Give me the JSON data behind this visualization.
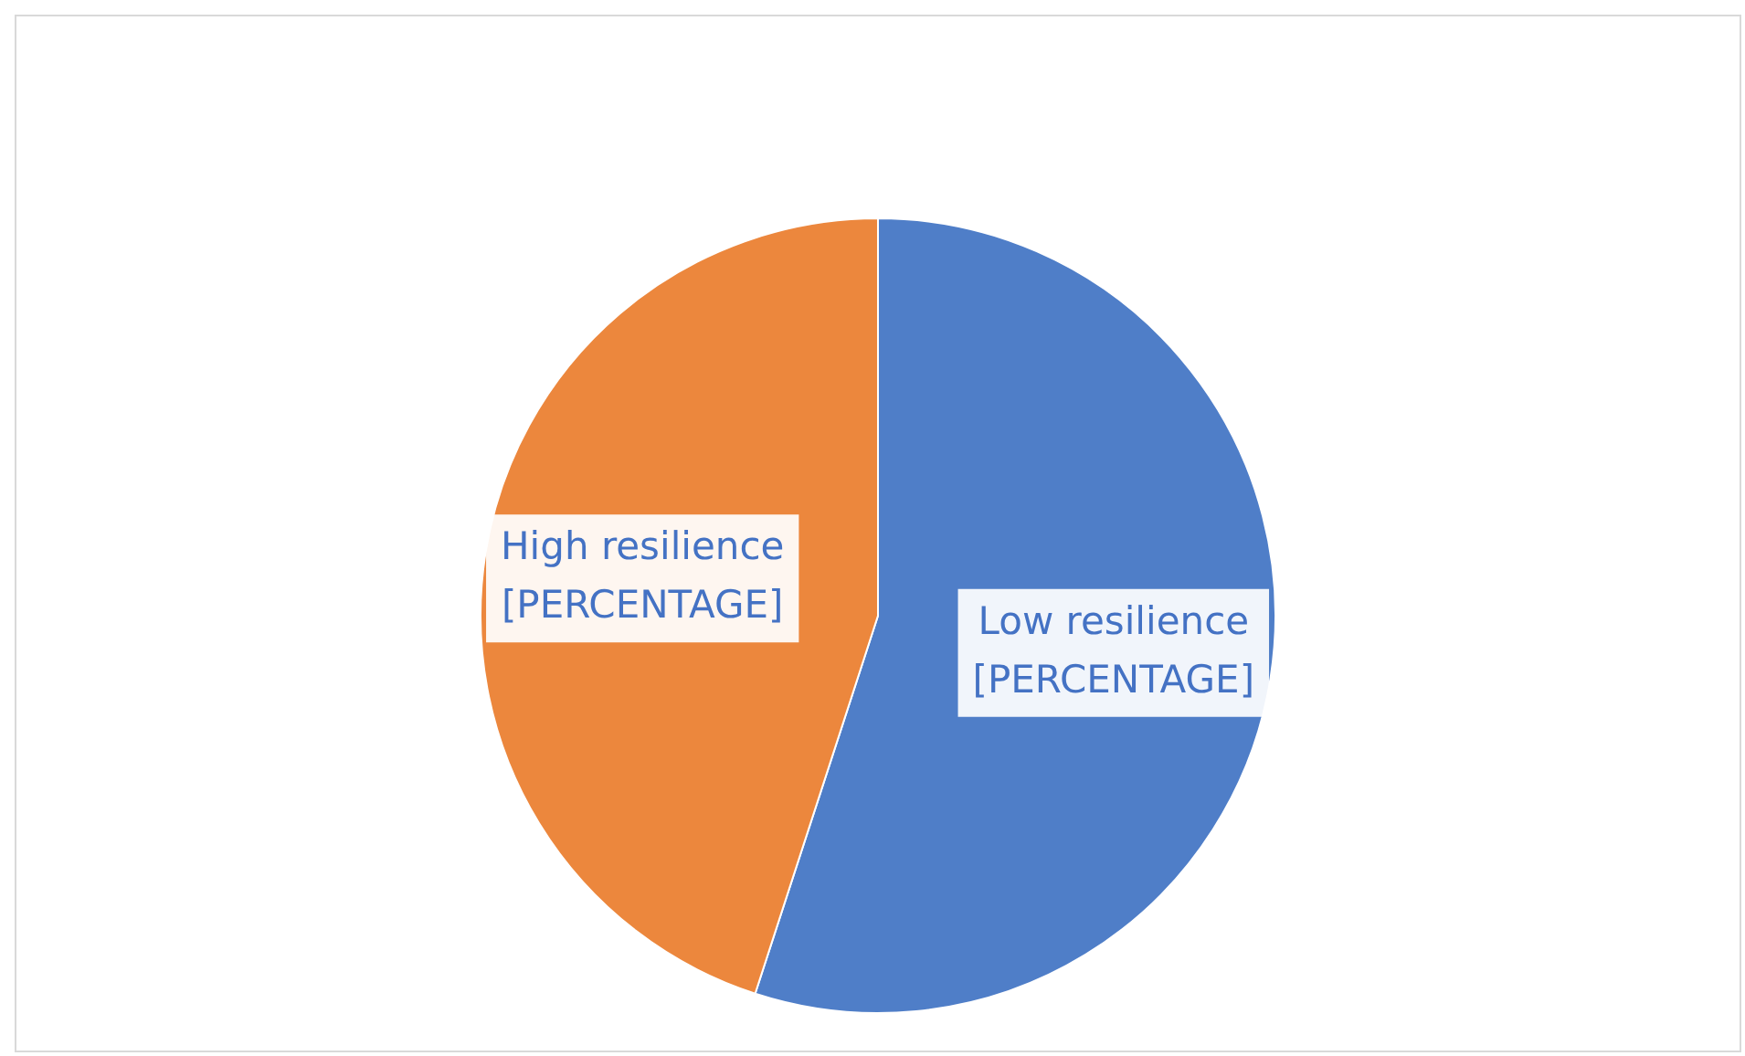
{
  "chart_data": {
    "type": "pie",
    "categories": [
      "Low resilience",
      "High resilience"
    ],
    "values": [
      55,
      45
    ],
    "colors": [
      "#4f7ec8",
      "#ec873d"
    ],
    "value_labels": [
      "[PERCENTAGE]",
      "[PERCENTAGE]"
    ],
    "legend": false
  }
}
